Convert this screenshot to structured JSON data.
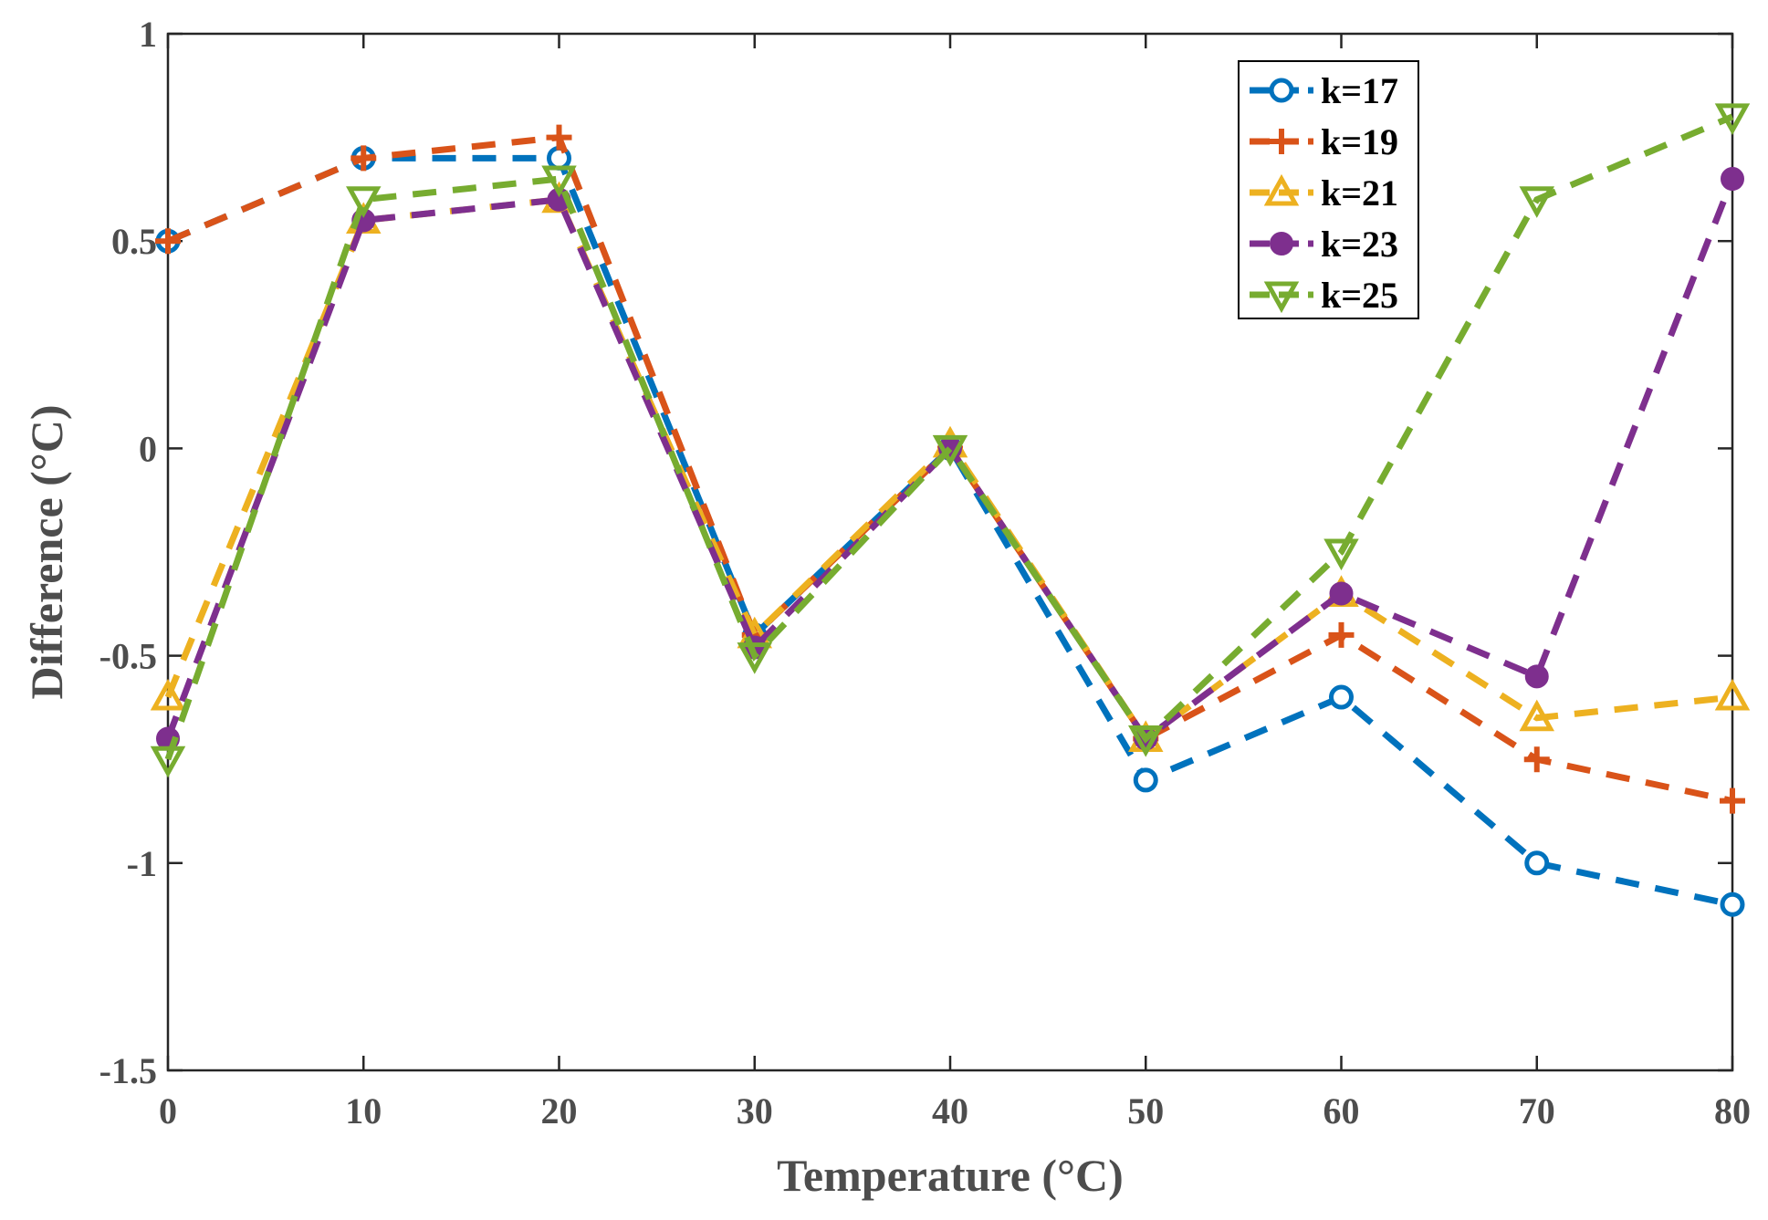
{
  "chart_data": {
    "type": "line",
    "title": "",
    "xlabel": "Temperature (°C)",
    "ylabel": "Difference (°C)",
    "x": [
      0,
      10,
      20,
      30,
      40,
      50,
      60,
      70,
      80
    ],
    "xlim": [
      0,
      80
    ],
    "ylim": [
      -1.5,
      1
    ],
    "xticks": [
      0,
      10,
      20,
      30,
      40,
      50,
      60,
      70,
      80
    ],
    "xtick_labels": [
      "0",
      "10",
      "20",
      "30",
      "40",
      "50",
      "60",
      "70",
      "80"
    ],
    "yticks": [
      -1.5,
      -1,
      -0.5,
      0,
      0.5,
      1
    ],
    "ytick_labels": [
      "-1.5",
      "-1",
      "-0.5",
      "0",
      "0.5",
      "1"
    ],
    "grid": false,
    "legend_position": "top-right",
    "series": [
      {
        "name": "k=17",
        "color": "#0072BD",
        "marker": "circle-open",
        "values": [
          0.5,
          0.7,
          0.7,
          -0.45,
          0,
          -0.8,
          -0.6,
          -1.0,
          -1.1
        ]
      },
      {
        "name": "k=19",
        "color": "#D95319",
        "marker": "plus",
        "values": [
          0.5,
          0.7,
          0.75,
          -0.45,
          0,
          -0.7,
          -0.45,
          -0.75,
          -0.85
        ]
      },
      {
        "name": "k=21",
        "color": "#EDB120",
        "marker": "triangle-up-open",
        "values": [
          -0.6,
          0.55,
          0.6,
          -0.45,
          0.01,
          -0.7,
          -0.35,
          -0.65,
          -0.6
        ]
      },
      {
        "name": "k=23",
        "color": "#7E2F8E",
        "marker": "circle-filled",
        "values": [
          -0.7,
          0.55,
          0.6,
          -0.48,
          0,
          -0.7,
          -0.35,
          -0.55,
          0.65
        ]
      },
      {
        "name": "k=25",
        "color": "#77AC30",
        "marker": "triangle-down-open",
        "values": [
          -0.75,
          0.6,
          0.65,
          -0.5,
          0,
          -0.7,
          -0.25,
          0.6,
          0.8
        ]
      }
    ]
  }
}
